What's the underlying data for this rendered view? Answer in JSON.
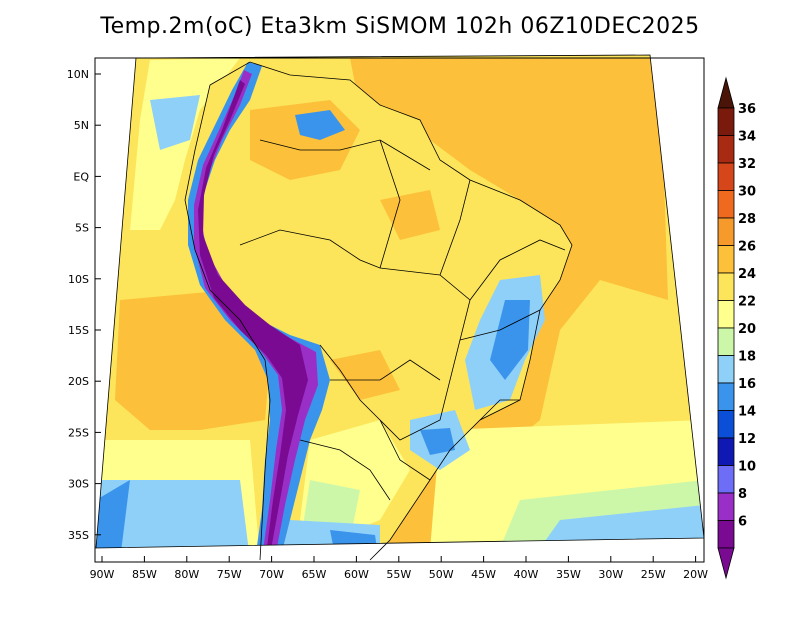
{
  "title": "Temp.2m(oC) Eta3km SiSMOM 102h 06Z10DEC2025",
  "map": {
    "variable": "2m temperature",
    "units": "oC",
    "model": "Eta3km SiSMOM",
    "forecast_hour": "102h",
    "valid_time": "06Z10DEC2025",
    "region": "South America / Brazil"
  },
  "axes": {
    "lat_labels": [
      "10N",
      "5N",
      "EQ",
      "5S",
      "10S",
      "15S",
      "20S",
      "25S",
      "30S",
      "35S"
    ],
    "lon_labels": [
      "90W",
      "85W",
      "80W",
      "75W",
      "70W",
      "65W",
      "60W",
      "55W",
      "50W",
      "45W",
      "40W",
      "35W",
      "30W",
      "25W",
      "20W"
    ]
  },
  "colorbar": {
    "levels": [
      "6",
      "8",
      "10",
      "12",
      "14",
      "16",
      "18",
      "20",
      "22",
      "24",
      "26",
      "28",
      "30",
      "32",
      "34",
      "36"
    ],
    "colors": [
      "#7a0a92",
      "#9a2fc8",
      "#6d6df7",
      "#1018b4",
      "#0b4fd8",
      "#3a94ec",
      "#8fd0f8",
      "#cdf7a8",
      "#ffff8e",
      "#fce55a",
      "#fcc03b",
      "#f79a2c",
      "#ef6a1f",
      "#d5461a",
      "#a92a12",
      "#7a1a0c",
      "#4a1408"
    ]
  },
  "colors": {
    "ocean_warm": "#fcc03b",
    "ocean_mild": "#fce55a",
    "ocean_cool": "#ffff8e",
    "ocean_cold": "#8fd0f8",
    "andes": "#7a0a92",
    "highlands": "#3a94ec",
    "border_line": "#000000"
  }
}
